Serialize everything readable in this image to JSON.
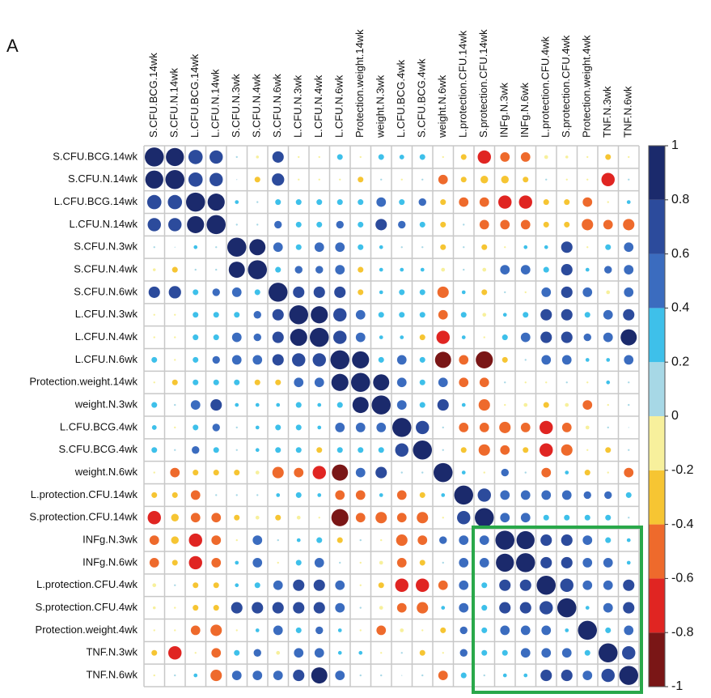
{
  "chart_data": {
    "type": "corrplot",
    "panel_label": "A",
    "categories": [
      "S.CFU.BCG.14wk",
      "S.CFU.N.14wk",
      "L.CFU.BCG.14wk",
      "L.CFU.N.14wk",
      "S.CFU.N.3wk",
      "S.CFU.N.4wk",
      "S.CFU.N.6wk",
      "L.CFU.N.3wk",
      "L.CFU.N.4wk",
      "L.CFU.N.6wk",
      "Protection.weight.14wk",
      "weight.N.3wk",
      "L.CFU.BCG.4wk",
      "S.CFU.BCG.4wk",
      "weight.N.6wk",
      "L.protection.CFU.14wk",
      "S.protection.CFU.14wk",
      "INFg.N.3wk",
      "INFg.N.6wk",
      "L.protection.CFU.4wk",
      "S.protection.CFU.4wk",
      "Protection.weight.4wk",
      "TNF.N.3wk",
      "TNF.N.6wk"
    ],
    "values": [
      [
        1,
        0.95,
        0.75,
        0.7,
        0.1,
        -0.15,
        0.6,
        -0.1,
        -0.1,
        0.3,
        -0.1,
        0.3,
        0.25,
        0.3,
        -0.1,
        -0.3,
        -0.7,
        -0.5,
        -0.5,
        -0.2,
        -0.15,
        -0.1,
        -0.3,
        -0.1
      ],
      [
        0.95,
        1,
        0.75,
        0.7,
        0.05,
        -0.3,
        0.65,
        -0.1,
        -0.1,
        -0.1,
        -0.3,
        0.1,
        -0.1,
        0.1,
        -0.5,
        -0.3,
        -0.4,
        -0.4,
        -0.3,
        0.1,
        -0.1,
        -0.1,
        -0.7,
        0.1
      ],
      [
        0.75,
        0.75,
        1,
        0.9,
        0.2,
        0.1,
        0.3,
        0.3,
        0.3,
        0.3,
        0.3,
        0.5,
        0.3,
        0.4,
        -0.3,
        -0.5,
        -0.5,
        -0.7,
        -0.7,
        -0.3,
        -0.3,
        -0.5,
        -0.1,
        0.2
      ],
      [
        0.7,
        0.7,
        0.9,
        1,
        0.1,
        0.1,
        0.4,
        0.3,
        0.3,
        0.4,
        0.3,
        0.6,
        0.4,
        0.3,
        -0.3,
        0.1,
        -0.5,
        -0.5,
        -0.5,
        -0.3,
        -0.3,
        -0.6,
        -0.5,
        -0.6
      ],
      [
        0.1,
        0.05,
        0.2,
        0.1,
        1,
        0.85,
        0.5,
        0.3,
        0.5,
        0.5,
        0.3,
        0.2,
        0.1,
        0.1,
        -0.3,
        0.1,
        -0.3,
        -0.1,
        0.2,
        0.2,
        0.6,
        -0.1,
        0.3,
        0.5
      ],
      [
        -0.15,
        -0.3,
        0.1,
        0.1,
        0.85,
        1,
        0.3,
        0.4,
        0.4,
        0.5,
        -0.3,
        0.2,
        0.2,
        0.2,
        -0.2,
        0.1,
        -0.2,
        0.5,
        0.5,
        0.3,
        0.6,
        0.2,
        0.4,
        0.5
      ],
      [
        0.6,
        0.65,
        0.3,
        0.4,
        0.5,
        0.3,
        1,
        0.6,
        0.6,
        0.6,
        -0.3,
        0.2,
        0.3,
        0.3,
        -0.6,
        0.2,
        -0.3,
        0.1,
        -0.1,
        0.5,
        0.6,
        0.5,
        -0.2,
        0.5
      ],
      [
        -0.1,
        -0.1,
        0.3,
        0.3,
        0.3,
        0.4,
        0.6,
        1,
        0.9,
        0.7,
        0.5,
        0.3,
        0.3,
        0.3,
        -0.5,
        0.3,
        -0.2,
        0.2,
        0.3,
        0.6,
        0.6,
        0.3,
        0.5,
        0.6
      ],
      [
        -0.1,
        -0.1,
        0.3,
        0.3,
        0.5,
        0.4,
        0.6,
        0.9,
        1,
        0.7,
        0.5,
        0.2,
        0.2,
        -0.3,
        -0.7,
        0.2,
        -0.1,
        0.3,
        0.5,
        0.6,
        0.6,
        0.4,
        0.5,
        0.85
      ],
      [
        0.3,
        -0.1,
        0.3,
        0.4,
        0.5,
        0.5,
        0.6,
        0.7,
        0.7,
        1,
        0.9,
        0.3,
        0.5,
        0.3,
        -0.85,
        -0.5,
        -0.9,
        -0.3,
        0.1,
        0.5,
        0.5,
        0.2,
        0.2,
        0.5
      ],
      [
        -0.1,
        -0.3,
        0.3,
        0.3,
        0.3,
        -0.3,
        -0.3,
        0.5,
        0.5,
        0.9,
        1,
        0.85,
        0.5,
        0.3,
        0.5,
        -0.5,
        -0.5,
        0.1,
        -0.1,
        -0.1,
        0.1,
        -0.1,
        0.2,
        0.1
      ],
      [
        0.3,
        0.1,
        0.5,
        0.6,
        0.2,
        0.2,
        0.2,
        0.3,
        0.2,
        0.3,
        0.85,
        1,
        0.5,
        0.3,
        0.6,
        0.2,
        -0.6,
        -0.1,
        -0.2,
        -0.3,
        -0.2,
        -0.5,
        -0.1,
        0.1
      ],
      [
        0.25,
        -0.1,
        0.3,
        0.4,
        0.1,
        0.2,
        0.3,
        0.3,
        0.2,
        0.5,
        0.5,
        0.5,
        1,
        0.7,
        0.1,
        -0.5,
        -0.5,
        -0.6,
        -0.5,
        -0.7,
        -0.5,
        -0.2,
        0.1,
        0.05
      ],
      [
        0.3,
        0.1,
        0.4,
        0.3,
        0.1,
        0.2,
        0.3,
        0.3,
        -0.3,
        0.3,
        0.3,
        0.3,
        0.7,
        1,
        0.1,
        -0.3,
        -0.6,
        -0.5,
        -0.3,
        -0.7,
        -0.6,
        -0.1,
        -0.3,
        0.1
      ],
      [
        -0.1,
        -0.5,
        -0.3,
        -0.3,
        -0.3,
        -0.2,
        -0.6,
        -0.5,
        -0.7,
        -0.85,
        0.5,
        0.6,
        0.1,
        0.1,
        1,
        0.2,
        -0.1,
        0.4,
        0.1,
        -0.5,
        0.2,
        -0.3,
        -0.1,
        -0.5
      ],
      [
        -0.3,
        -0.3,
        -0.5,
        0.1,
        0.1,
        0.1,
        0.2,
        0.3,
        0.2,
        -0.5,
        -0.5,
        0.2,
        -0.5,
        -0.3,
        0.2,
        1,
        0.7,
        0.5,
        0.5,
        0.5,
        0.5,
        0.4,
        0.4,
        0.3
      ],
      [
        -0.7,
        -0.4,
        -0.5,
        -0.5,
        -0.3,
        -0.2,
        -0.3,
        -0.2,
        -0.1,
        -0.9,
        -0.5,
        -0.6,
        -0.5,
        -0.6,
        -0.1,
        0.7,
        1,
        0.5,
        0.5,
        0.3,
        0.3,
        0.3,
        0.3,
        0.1
      ],
      [
        -0.5,
        -0.4,
        -0.7,
        -0.5,
        -0.1,
        0.5,
        0.1,
        0.2,
        0.3,
        -0.3,
        0.1,
        -0.1,
        -0.6,
        -0.5,
        0.4,
        0.5,
        0.5,
        1,
        0.95,
        0.6,
        0.6,
        0.5,
        0.3,
        0.2
      ],
      [
        -0.5,
        -0.3,
        -0.7,
        -0.5,
        0.2,
        0.5,
        -0.1,
        0.3,
        0.5,
        0.1,
        -0.1,
        -0.2,
        -0.5,
        -0.3,
        0.1,
        0.5,
        0.5,
        0.95,
        1,
        0.6,
        0.6,
        0.5,
        0.5,
        0.2
      ],
      [
        -0.2,
        0.1,
        -0.3,
        -0.3,
        0.2,
        0.3,
        0.5,
        0.6,
        0.6,
        0.5,
        -0.1,
        -0.3,
        -0.7,
        -0.7,
        -0.5,
        0.5,
        0.3,
        0.6,
        0.6,
        1,
        0.7,
        0.5,
        0.5,
        0.6
      ],
      [
        -0.15,
        -0.1,
        -0.3,
        -0.3,
        0.6,
        0.6,
        0.6,
        0.6,
        0.6,
        0.5,
        0.1,
        -0.2,
        -0.5,
        -0.6,
        0.2,
        0.5,
        0.3,
        0.6,
        0.6,
        0.7,
        1,
        0.2,
        0.5,
        0.6
      ],
      [
        -0.1,
        -0.1,
        -0.5,
        -0.6,
        -0.1,
        0.2,
        0.5,
        0.3,
        0.4,
        0.2,
        -0.1,
        -0.5,
        -0.2,
        -0.1,
        -0.3,
        0.4,
        0.3,
        0.5,
        0.5,
        0.5,
        0.2,
        1,
        0.3,
        0.5
      ],
      [
        -0.3,
        -0.7,
        -0.1,
        -0.5,
        0.3,
        0.4,
        -0.2,
        0.5,
        0.5,
        0.2,
        0.2,
        -0.1,
        0.1,
        -0.3,
        -0.1,
        0.4,
        0.3,
        0.3,
        0.5,
        0.5,
        0.5,
        0.3,
        1,
        0.7
      ],
      [
        -0.1,
        0.1,
        0.2,
        -0.6,
        0.5,
        0.5,
        0.5,
        0.6,
        0.85,
        0.5,
        0.1,
        0.1,
        0.05,
        0.1,
        -0.5,
        0.3,
        0.1,
        0.2,
        0.2,
        0.6,
        0.6,
        0.5,
        0.7,
        1
      ]
    ],
    "clim": [
      -1,
      1
    ],
    "cticks": [
      -1,
      -0.8,
      -0.6,
      -0.4,
      -0.2,
      0,
      0.2,
      0.4,
      0.6,
      0.8,
      1
    ],
    "colors": [
      "#7a1616",
      "#e02522",
      "#ee6a2c",
      "#f6c533",
      "#f7f09c",
      "#a7d8e6",
      "#3ec0ea",
      "#3b6cbf",
      "#2c4b9c",
      "#1b2a6c"
    ]
  }
}
